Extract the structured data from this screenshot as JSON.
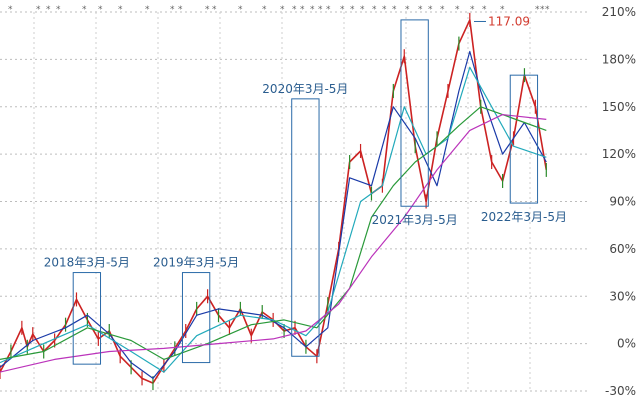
{
  "chart_data": {
    "type": "line",
    "title": "",
    "xlabel": "",
    "ylabel": "",
    "y_unit": "%",
    "ylim": [
      -30,
      210
    ],
    "x_range": [
      2017.5,
      2022.9
    ],
    "grid": true,
    "y_ticks": [
      {
        "value": 210,
        "label": "210%"
      },
      {
        "value": 180,
        "label": "180%"
      },
      {
        "value": 150,
        "label": "150%"
      },
      {
        "value": 120,
        "label": "120%"
      },
      {
        "value": 90,
        "label": "90%"
      },
      {
        "value": 60,
        "label": "60%"
      },
      {
        "value": 30,
        "label": "30%"
      },
      {
        "value": 0,
        "label": "0%"
      },
      {
        "value": -30,
        "label": "-30%"
      }
    ],
    "series": [
      {
        "role": "price",
        "color": "#cc2222",
        "x": [
          2017.5,
          2017.6,
          2017.7,
          2017.75,
          2017.8,
          2017.9,
          2018.0,
          2018.1,
          2018.2,
          2018.3,
          2018.4,
          2018.5,
          2018.6,
          2018.7,
          2018.8,
          2018.9,
          2019.0,
          2019.1,
          2019.2,
          2019.3,
          2019.4,
          2019.5,
          2019.6,
          2019.7,
          2019.8,
          2019.9,
          2020.0,
          2020.1,
          2020.2,
          2020.3,
          2020.4,
          2020.5,
          2020.6,
          2020.7,
          2020.8,
          2020.9,
          2021.0,
          2021.1,
          2021.2,
          2021.3,
          2021.4,
          2021.5,
          2021.6,
          2021.7,
          2021.8,
          2021.9,
          2022.0,
          2022.1,
          2022.2,
          2022.3,
          2022.4,
          2022.5
        ],
        "y": [
          -18,
          -5,
          10,
          -2,
          6,
          -5,
          2,
          12,
          28,
          15,
          3,
          8,
          -8,
          -15,
          -22,
          -25,
          -14,
          -3,
          8,
          22,
          30,
          18,
          10,
          22,
          5,
          20,
          15,
          8,
          10,
          -2,
          -8,
          25,
          60,
          115,
          122,
          95,
          100,
          160,
          182,
          125,
          90,
          130,
          160,
          190,
          205,
          150,
          115,
          103,
          130,
          170,
          150,
          110
        ]
      },
      {
        "role": "ma-short",
        "color": "#1a3aa8",
        "x": [
          2017.5,
          2017.8,
          2018.1,
          2018.3,
          2018.5,
          2018.7,
          2018.9,
          2019.1,
          2019.3,
          2019.5,
          2019.7,
          2019.9,
          2020.1,
          2020.3,
          2020.5,
          2020.7,
          2020.9,
          2021.1,
          2021.3,
          2021.5,
          2021.7,
          2021.8,
          2021.9,
          2022.1,
          2022.3,
          2022.5
        ],
        "y": [
          -15,
          2,
          10,
          18,
          6,
          -12,
          -22,
          -5,
          18,
          22,
          20,
          18,
          10,
          -2,
          10,
          105,
          100,
          150,
          130,
          100,
          160,
          185,
          160,
          120,
          140,
          115
        ]
      },
      {
        "role": "ma-mid",
        "color": "#22aabb",
        "x": [
          2017.5,
          2017.9,
          2018.3,
          2018.7,
          2019.0,
          2019.3,
          2019.7,
          2020.0,
          2020.3,
          2020.5,
          2020.8,
          2021.0,
          2021.2,
          2021.4,
          2021.6,
          2021.8,
          2022.0,
          2022.2,
          2022.5
        ],
        "y": [
          -12,
          0,
          12,
          -5,
          -18,
          5,
          18,
          15,
          5,
          20,
          90,
          100,
          150,
          120,
          130,
          175,
          150,
          125,
          118
        ]
      },
      {
        "role": "ma-long",
        "color": "#2a9a3a",
        "x": [
          2017.5,
          2017.9,
          2018.3,
          2018.7,
          2019.0,
          2019.4,
          2019.8,
          2020.1,
          2020.4,
          2020.7,
          2020.9,
          2021.1,
          2021.3,
          2021.5,
          2021.7,
          2021.9,
          2022.1,
          2022.3,
          2022.5
        ],
        "y": [
          -10,
          -5,
          10,
          2,
          -10,
          0,
          12,
          15,
          10,
          35,
          80,
          100,
          115,
          125,
          138,
          150,
          145,
          140,
          135
        ]
      },
      {
        "role": "ma-longest",
        "color": "#bb33bb",
        "x": [
          2017.5,
          2018.0,
          2018.5,
          2019.0,
          2019.5,
          2020.0,
          2020.3,
          2020.6,
          2020.9,
          2021.2,
          2021.5,
          2021.8,
          2022.1,
          2022.5
        ],
        "y": [
          -18,
          -10,
          -5,
          -3,
          0,
          3,
          8,
          25,
          55,
          80,
          110,
          135,
          145,
          142
        ]
      }
    ],
    "highlight_boxes": [
      {
        "label": "2018年3月-5月",
        "x": [
          2018.17,
          2018.42
        ],
        "y": [
          -13,
          45
        ]
      },
      {
        "label": "2019年3月-5月",
        "x": [
          2019.17,
          2019.42
        ],
        "y": [
          -12,
          45
        ]
      },
      {
        "label": "2020年3月-5月",
        "x": [
          2020.17,
          2020.42
        ],
        "y": [
          -8,
          155
        ]
      },
      {
        "label": "2021年3月-5月",
        "x": [
          2021.17,
          2021.42
        ],
        "y": [
          87,
          205
        ]
      },
      {
        "label": "2022年3月-5月",
        "x": [
          2022.17,
          2022.42
        ],
        "y": [
          89,
          170
        ]
      }
    ],
    "annotations": [
      {
        "text": "117.09",
        "x": 2021.82,
        "y": 204
      }
    ]
  }
}
